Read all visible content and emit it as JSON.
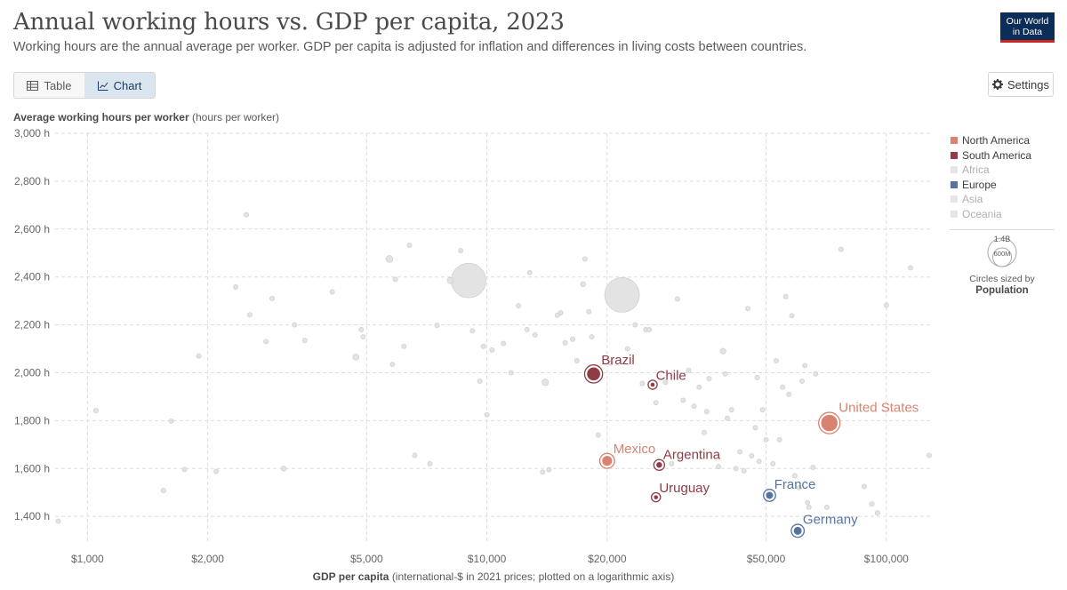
{
  "header": {
    "title": "Annual working hours vs. GDP per capita, 2023",
    "subtitle": "Working hours are the annual average per worker. GDP per capita is adjusted for inflation and differences in living costs between countries.",
    "logo_line1": "Our World",
    "logo_line2": "in Data"
  },
  "controls": {
    "tab_table": "Table",
    "tab_chart": "Chart",
    "settings_label": "Settings"
  },
  "colors": {
    "north_america": "#d9826f",
    "south_america": "#8f3c44",
    "europe": "#56739f",
    "background_point": "#e0e0e0",
    "background_stroke": "#cfcfcf"
  },
  "legend": {
    "items": [
      {
        "label": "North America",
        "color": "#d9826f",
        "active": true
      },
      {
        "label": "South America",
        "color": "#8f3c44",
        "active": true
      },
      {
        "label": "Africa",
        "color": "#e6e6e6",
        "active": false
      },
      {
        "label": "Europe",
        "color": "#56739f",
        "active": true
      },
      {
        "label": "Asia",
        "color": "#e6e6e6",
        "active": false
      },
      {
        "label": "Oceania",
        "color": "#e6e6e6",
        "active": false
      }
    ],
    "size_large": "1.4B",
    "size_small": "600M",
    "size_note": "Circles sized by",
    "size_var": "Population"
  },
  "chart_data": {
    "type": "scatter",
    "title": "Annual working hours vs. GDP per capita, 2023",
    "ylabel_bold": "Average working hours per worker",
    "ylabel_unit": "(hours per worker)",
    "xlabel_bold": "GDP per capita",
    "xlabel_unit": "(international-$ in 2021 prices; plotted on a logarithmic axis)",
    "xscale": "log",
    "xlim": [
      830,
      130000
    ],
    "ylim": [
      1345,
      3000
    ],
    "xticks": [
      {
        "value": 1000,
        "label": "$1,000"
      },
      {
        "value": 2000,
        "label": "$2,000"
      },
      {
        "value": 5000,
        "label": "$5,000"
      },
      {
        "value": 10000,
        "label": "$10,000"
      },
      {
        "value": 20000,
        "label": "$20,000"
      },
      {
        "value": 50000,
        "label": "$50,000"
      },
      {
        "value": 100000,
        "label": "$100,000"
      }
    ],
    "yticks": [
      {
        "value": 1400,
        "label": "1,400 h"
      },
      {
        "value": 1600,
        "label": "1,600 h"
      },
      {
        "value": 1800,
        "label": "1,800 h"
      },
      {
        "value": 2000,
        "label": "2,000 h"
      },
      {
        "value": 2200,
        "label": "2,200 h"
      },
      {
        "value": 2400,
        "label": "2,400 h"
      },
      {
        "value": 2600,
        "label": "2,600 h"
      },
      {
        "value": 2800,
        "label": "2,800 h"
      },
      {
        "value": 3000,
        "label": "3,000 h"
      }
    ],
    "highlighted": [
      {
        "name": "United States",
        "region": "North America",
        "x": 72000,
        "y": 1790,
        "pop": 335,
        "label_pos": "above-right"
      },
      {
        "name": "Mexico",
        "region": "North America",
        "x": 20000,
        "y": 1632,
        "pop": 128,
        "label_pos": "above-right"
      },
      {
        "name": "Brazil",
        "region": "South America",
        "x": 18500,
        "y": 1995,
        "pop": 216,
        "label_pos": "above-right"
      },
      {
        "name": "Chile",
        "region": "South America",
        "x": 26000,
        "y": 1950,
        "pop": 20,
        "label_pos": "above-right"
      },
      {
        "name": "Argentina",
        "region": "South America",
        "x": 27000,
        "y": 1615,
        "pop": 46,
        "label_pos": "above-right"
      },
      {
        "name": "Uruguay",
        "region": "South America",
        "x": 26500,
        "y": 1480,
        "pop": 3.4,
        "label_pos": "above-right"
      },
      {
        "name": "France",
        "region": "Europe",
        "x": 51000,
        "y": 1488,
        "pop": 68,
        "label_pos": "above-right"
      },
      {
        "name": "Germany",
        "region": "Europe",
        "x": 60000,
        "y": 1340,
        "pop": 84,
        "label_pos": "above-right"
      }
    ],
    "background": [
      [
        845,
        1380,
        10
      ],
      [
        1050,
        1842,
        22
      ],
      [
        1550,
        1508,
        6
      ],
      [
        1620,
        1798,
        6
      ],
      [
        1750,
        1596,
        5
      ],
      [
        1900,
        2070,
        8
      ],
      [
        2100,
        1588,
        5
      ],
      [
        2350,
        2358,
        7
      ],
      [
        2500,
        2660,
        14
      ],
      [
        2550,
        2242,
        5
      ],
      [
        2800,
        2130,
        8
      ],
      [
        2900,
        2310,
        5
      ],
      [
        3100,
        1600,
        30
      ],
      [
        3300,
        2200,
        5
      ],
      [
        3500,
        2135,
        15
      ],
      [
        4100,
        2338,
        5
      ],
      [
        4700,
        2065,
        45
      ],
      [
        4850,
        2180,
        5
      ],
      [
        4900,
        2150,
        5
      ],
      [
        5700,
        2475,
        55
      ],
      [
        5800,
        2035,
        12
      ],
      [
        5900,
        2390,
        5
      ],
      [
        6200,
        2110,
        8
      ],
      [
        6400,
        2532,
        5
      ],
      [
        6600,
        1655,
        8
      ],
      [
        7200,
        1620,
        6
      ],
      [
        7500,
        2198,
        15
      ],
      [
        8100,
        2385,
        45
      ],
      [
        8600,
        2510,
        5
      ],
      [
        9000,
        2385,
        1400
      ],
      [
        9200,
        2175,
        12
      ],
      [
        9600,
        1965,
        5
      ],
      [
        9800,
        2110,
        8
      ],
      [
        10000,
        1825,
        6
      ],
      [
        10300,
        2095,
        25
      ],
      [
        11000,
        2122,
        8
      ],
      [
        11500,
        2000,
        6
      ],
      [
        12000,
        2280,
        6
      ],
      [
        12600,
        2180,
        22
      ],
      [
        12800,
        2418,
        5
      ],
      [
        13200,
        2158,
        25
      ],
      [
        13800,
        1585,
        10
      ],
      [
        14000,
        1960,
        50
      ],
      [
        14300,
        1595,
        5
      ],
      [
        15000,
        2240,
        15
      ],
      [
        15300,
        2250,
        18
      ],
      [
        15700,
        2125,
        5
      ],
      [
        16400,
        2140,
        5
      ],
      [
        16800,
        2050,
        8
      ],
      [
        17400,
        2370,
        30
      ],
      [
        17600,
        2475,
        10
      ],
      [
        18000,
        2255,
        5
      ],
      [
        18300,
        2150,
        5
      ],
      [
        19000,
        1740,
        5
      ],
      [
        20400,
        2040,
        12
      ],
      [
        21800,
        2325,
        1410
      ],
      [
        22500,
        2100,
        6
      ],
      [
        23500,
        2200,
        18
      ],
      [
        24500,
        1955,
        5
      ],
      [
        25000,
        2180,
        5
      ],
      [
        25500,
        2180,
        5
      ],
      [
        26500,
        1875,
        5
      ],
      [
        28000,
        1960,
        5
      ],
      [
        29000,
        1620,
        5
      ],
      [
        30000,
        2308,
        8
      ],
      [
        31000,
        1885,
        5
      ],
      [
        32000,
        2010,
        5
      ],
      [
        33000,
        1860,
        5
      ],
      [
        34000,
        1940,
        8
      ],
      [
        35000,
        1750,
        12
      ],
      [
        35500,
        1838,
        5
      ],
      [
        36000,
        1975,
        5
      ],
      [
        38000,
        1608,
        5
      ],
      [
        39000,
        2090,
        38
      ],
      [
        39500,
        1995,
        5
      ],
      [
        40000,
        1810,
        5
      ],
      [
        41000,
        1845,
        8
      ],
      [
        42000,
        1600,
        5
      ],
      [
        43000,
        1670,
        5
      ],
      [
        44000,
        1590,
        5
      ],
      [
        45000,
        2268,
        5
      ],
      [
        46000,
        1653,
        25
      ],
      [
        47000,
        1770,
        8
      ],
      [
        47500,
        1980,
        5
      ],
      [
        48000,
        1630,
        8
      ],
      [
        49000,
        1845,
        5
      ],
      [
        50000,
        1720,
        5
      ],
      [
        52000,
        1620,
        5
      ],
      [
        53000,
        2050,
        5
      ],
      [
        54000,
        1720,
        5
      ],
      [
        55000,
        1940,
        5
      ],
      [
        56000,
        2318,
        5
      ],
      [
        57000,
        1910,
        10
      ],
      [
        58000,
        2238,
        5
      ],
      [
        59000,
        1570,
        8
      ],
      [
        60500,
        1520,
        5
      ],
      [
        61500,
        1965,
        5
      ],
      [
        62500,
        2030,
        5
      ],
      [
        63500,
        1458,
        5
      ],
      [
        64000,
        1438,
        5
      ],
      [
        65500,
        1605,
        5
      ],
      [
        66500,
        1995,
        5
      ],
      [
        71000,
        1438,
        5
      ],
      [
        74000,
        1810,
        5
      ],
      [
        77000,
        2515,
        5
      ],
      [
        88000,
        1525,
        5
      ],
      [
        92000,
        1452,
        5
      ],
      [
        95000,
        1415,
        5
      ],
      [
        100000,
        2282,
        5
      ],
      [
        115000,
        2438,
        5
      ],
      [
        128000,
        1655,
        5
      ]
    ]
  }
}
